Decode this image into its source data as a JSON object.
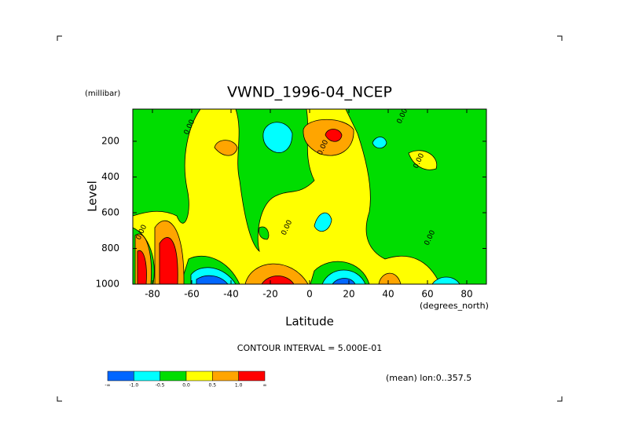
{
  "chart_data": {
    "type": "contour",
    "title": "VWND_1996-04_NCEP",
    "x_label": "Latitude",
    "x_unit": "(degrees_north)",
    "y_label": "Level",
    "y_unit": "(millibar)",
    "xlim": [
      -90,
      90
    ],
    "xticks": [
      -80,
      -60,
      -40,
      -20,
      0,
      20,
      40,
      60,
      80
    ],
    "ylim": [
      1000,
      20
    ],
    "yticks": [
      200,
      400,
      600,
      800,
      1000
    ],
    "contour_interval_text": "CONTOUR INTERVAL = 5.000E-01",
    "note": "(mean) lon:0..357.5",
    "colorbar": {
      "colors": [
        "#0066ff",
        "#00ffff",
        "#00dd00",
        "#ffff00",
        "#ffa500",
        "#ff0000"
      ],
      "labels": [
        "-∞",
        "-1.0",
        "-0.5",
        "0.0",
        "0.5",
        "1.0",
        "∞"
      ]
    },
    "contour_labels": [
      "0.00",
      "0.00",
      "0.00",
      "0.00",
      "0.00",
      "0.00",
      "0.00"
    ]
  }
}
